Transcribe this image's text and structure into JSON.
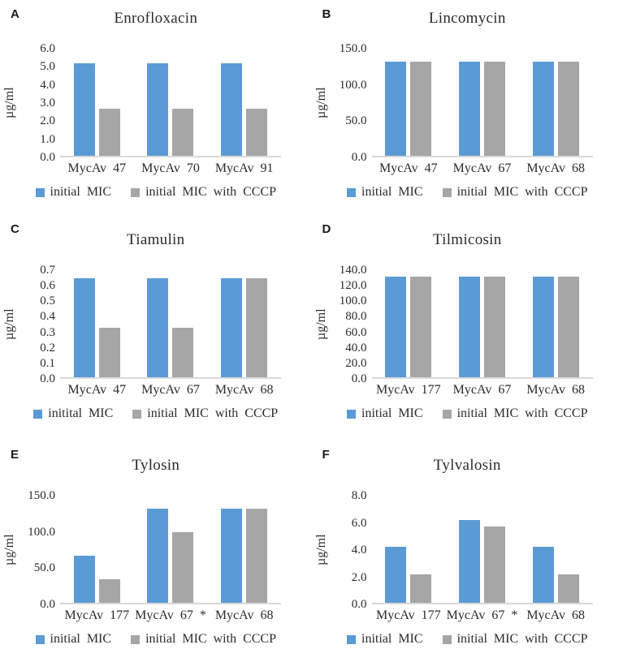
{
  "figure": {
    "background": "#ffffff",
    "text_color": "#2b2b2b",
    "axis_line_color": "#D9D9D9",
    "bar_blue": "#5B9BD5",
    "bar_gray": "#A6A6A6"
  },
  "chart_data": [
    {
      "panel": "A",
      "type": "bar",
      "title": "Enrofloxacin",
      "ylabel": "µg/ml",
      "ylim": [
        0,
        6
      ],
      "tick_labels": [
        "6.0",
        "5.0",
        "4.0",
        "3.0",
        "2.0",
        "1.0",
        "0.0"
      ],
      "categories": [
        "MycAv 47",
        "MycAv 70",
        "MycAv 91"
      ],
      "grid": false,
      "legend_position": "bottom",
      "series": [
        {
          "name": "initial MIC",
          "color": "#5B9BD5",
          "values": [
            5.1,
            5.1,
            5.1
          ]
        },
        {
          "name": "initial MIC with CCCP",
          "color": "#A6A6A6",
          "values": [
            2.6,
            2.6,
            2.6
          ]
        }
      ]
    },
    {
      "panel": "B",
      "type": "bar",
      "title": "Lincomycin",
      "ylabel": "µg/ml",
      "ylim": [
        0,
        150
      ],
      "tick_labels": [
        "150.0",
        "100.0",
        "50.0",
        "0.0"
      ],
      "categories": [
        "MycAv 47",
        "MycAv 67",
        "MycAv 68"
      ],
      "grid": false,
      "legend_position": "bottom",
      "series": [
        {
          "name": "initial MIC",
          "color": "#5B9BD5",
          "values": [
            130,
            130,
            130
          ]
        },
        {
          "name": "initial MIC with CCCP",
          "color": "#A6A6A6",
          "values": [
            130,
            130,
            130
          ]
        }
      ]
    },
    {
      "panel": "C",
      "type": "bar",
      "title": "Tiamulin",
      "ylabel": "µg/ml",
      "ylim": [
        0,
        0.7
      ],
      "tick_labels": [
        "0.7",
        "0.6",
        "0.5",
        "0.4",
        "0.3",
        "0.2",
        "0.1",
        "0.0"
      ],
      "categories": [
        "MycAv 47",
        "MycAv 67",
        "MycAv 68"
      ],
      "grid": false,
      "legend_position": "bottom",
      "series": [
        {
          "name": "initital MIC",
          "color": "#5B9BD5",
          "values": [
            0.64,
            0.64,
            0.64
          ]
        },
        {
          "name": "initial MIC with CCCP",
          "color": "#A6A6A6",
          "values": [
            0.32,
            0.32,
            0.64
          ]
        }
      ]
    },
    {
      "panel": "D",
      "type": "bar",
      "title": "Tilmicosin",
      "ylabel": "µg/ml",
      "ylim": [
        0,
        140
      ],
      "tick_labels": [
        "140.0",
        "120.0",
        "100.0",
        "80.0",
        "60.0",
        "40.0",
        "20.0",
        "0.0"
      ],
      "categories": [
        "MycAv 177",
        "MycAv 67",
        "MycAv 68"
      ],
      "grid": false,
      "legend_position": "bottom",
      "series": [
        {
          "name": "initial MIC",
          "color": "#5B9BD5",
          "values": [
            130,
            130,
            130
          ]
        },
        {
          "name": "initial MIC with CCCP",
          "color": "#A6A6A6",
          "values": [
            130,
            130,
            130
          ]
        }
      ]
    },
    {
      "panel": "E",
      "type": "bar",
      "title": "Tylosin",
      "ylabel": "µg/ml",
      "ylim": [
        0,
        150
      ],
      "tick_labels": [
        "150.0",
        "100.0",
        "50.0",
        "0.0"
      ],
      "categories": [
        "MycAv 177",
        "MycAv 67 *",
        "MycAv 68"
      ],
      "grid": false,
      "legend_position": "bottom",
      "series": [
        {
          "name": "initial MIC",
          "color": "#5B9BD5",
          "values": [
            65,
            130,
            130
          ]
        },
        {
          "name": "initial MIC with CCCP",
          "color": "#A6A6A6",
          "values": [
            33,
            97,
            130
          ]
        }
      ]
    },
    {
      "panel": "F",
      "type": "bar",
      "title": "Tylvalosin",
      "ylabel": "µg/ml",
      "ylim": [
        0,
        8
      ],
      "tick_labels": [
        "8.0",
        "6.0",
        "4.0",
        "2.0",
        "0.0"
      ],
      "categories": [
        "MycAv 177",
        "MycAv 67 *",
        "MycAv 68"
      ],
      "grid": false,
      "legend_position": "bottom",
      "series": [
        {
          "name": "initial MIC",
          "color": "#5B9BD5",
          "values": [
            4.1,
            6.1,
            4.1
          ]
        },
        {
          "name": "initial MIC with CCCP",
          "color": "#A6A6A6",
          "values": [
            2.1,
            5.6,
            2.1
          ]
        }
      ]
    }
  ]
}
